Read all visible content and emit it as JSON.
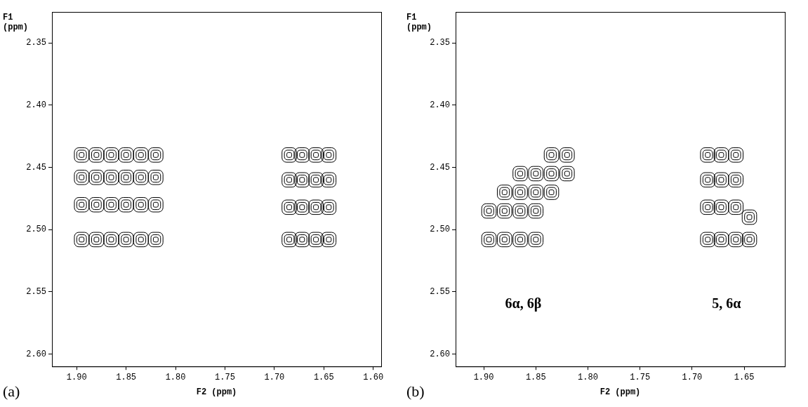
{
  "chart_data": [
    {
      "type": "scatter",
      "panel": "(a)",
      "xlabel": "F2 (ppm)",
      "ylabel": "F1 (ppm)",
      "grid": false,
      "xlim": [
        1.925,
        1.592
      ],
      "ylim": [
        2.325,
        2.61
      ],
      "xticks": [
        {
          "value": 1.9,
          "label": "1.90"
        },
        {
          "value": 1.85,
          "label": "1.85"
        },
        {
          "value": 1.8,
          "label": "1.80"
        },
        {
          "value": 1.75,
          "label": "1.75"
        },
        {
          "value": 1.7,
          "label": "1.70"
        },
        {
          "value": 1.65,
          "label": "1.65"
        },
        {
          "value": 1.6,
          "label": "1.60"
        }
      ],
      "yticks": [
        2.35,
        {
          "value": 2.4,
          "label": "2.40"
        },
        2.45,
        {
          "value": 2.5,
          "label": "2.50"
        },
        2.55,
        {
          "value": 2.6,
          "label": "2.60"
        }
      ],
      "series": [
        {
          "color": "#000000",
          "marker": "rectRounded",
          "x": [
            1.895,
            1.88,
            1.865,
            1.85,
            1.835,
            1.82,
            1.895,
            1.88,
            1.865,
            1.85,
            1.835,
            1.82,
            1.895,
            1.88,
            1.865,
            1.85,
            1.835,
            1.82,
            1.895,
            1.88,
            1.865,
            1.85,
            1.835,
            1.82
          ],
          "values": [
            2.44,
            2.44,
            2.44,
            2.44,
            2.44,
            2.44,
            2.458,
            2.458,
            2.458,
            2.458,
            2.458,
            2.458,
            2.48,
            2.48,
            2.48,
            2.48,
            2.48,
            2.48,
            2.508,
            2.508,
            2.508,
            2.508,
            2.508,
            2.508
          ]
        },
        {
          "color": "#000000",
          "marker": "rectRounded",
          "x": [
            1.685,
            1.672,
            1.658,
            1.645,
            1.685,
            1.672,
            1.658,
            1.645,
            1.685,
            1.672,
            1.658,
            1.645,
            1.685,
            1.672,
            1.658,
            1.645
          ],
          "values": [
            2.44,
            2.44,
            2.44,
            2.44,
            2.46,
            2.46,
            2.46,
            2.46,
            2.482,
            2.482,
            2.482,
            2.482,
            2.508,
            2.508,
            2.508,
            2.508
          ]
        }
      ]
    },
    {
      "type": "scatter",
      "panel": "(b)",
      "xlabel": "F2 (ppm)",
      "ylabel": "F1 (ppm)",
      "grid": false,
      "xlim": [
        1.927,
        1.611
      ],
      "ylim": [
        2.325,
        2.61
      ],
      "xticks": [
        {
          "value": 1.9,
          "label": "1.90"
        },
        {
          "value": 1.85,
          "label": "1.85"
        },
        {
          "value": 1.8,
          "label": "1.80"
        },
        {
          "value": 1.75,
          "label": "1.75"
        },
        {
          "value": 1.7,
          "label": "1.70"
        },
        {
          "value": 1.65,
          "label": "1.65"
        }
      ],
      "yticks": [
        2.35,
        {
          "value": 2.4,
          "label": "2.40"
        },
        2.45,
        {
          "value": 2.5,
          "label": "2.50"
        },
        2.55,
        {
          "value": 2.6,
          "label": "2.60"
        }
      ],
      "annotations": [
        {
          "text": "6α, 6β",
          "x": 1.862,
          "y": 2.56
        },
        {
          "text": "5, 6α",
          "x": 1.667,
          "y": 2.56
        }
      ],
      "series": [
        {
          "color": "#000000",
          "marker": "rectRounded",
          "x": [
            1.835,
            1.82,
            1.865,
            1.85,
            1.835,
            1.82,
            1.88,
            1.865,
            1.85,
            1.835,
            1.895,
            1.88,
            1.865,
            1.85,
            1.895,
            1.88,
            1.865,
            1.85
          ],
          "values": [
            2.44,
            2.44,
            2.455,
            2.455,
            2.455,
            2.455,
            2.47,
            2.47,
            2.47,
            2.47,
            2.485,
            2.485,
            2.485,
            2.485,
            2.508,
            2.508,
            2.508,
            2.508
          ]
        },
        {
          "color": "#000000",
          "marker": "rectRounded",
          "x": [
            1.685,
            1.672,
            1.658,
            1.685,
            1.672,
            1.658,
            1.685,
            1.672,
            1.658,
            1.645,
            1.685,
            1.672,
            1.658,
            1.645
          ],
          "values": [
            2.44,
            2.44,
            2.44,
            2.46,
            2.46,
            2.46,
            2.482,
            2.482,
            2.482,
            2.49,
            2.508,
            2.508,
            2.508,
            2.508
          ]
        }
      ]
    }
  ]
}
